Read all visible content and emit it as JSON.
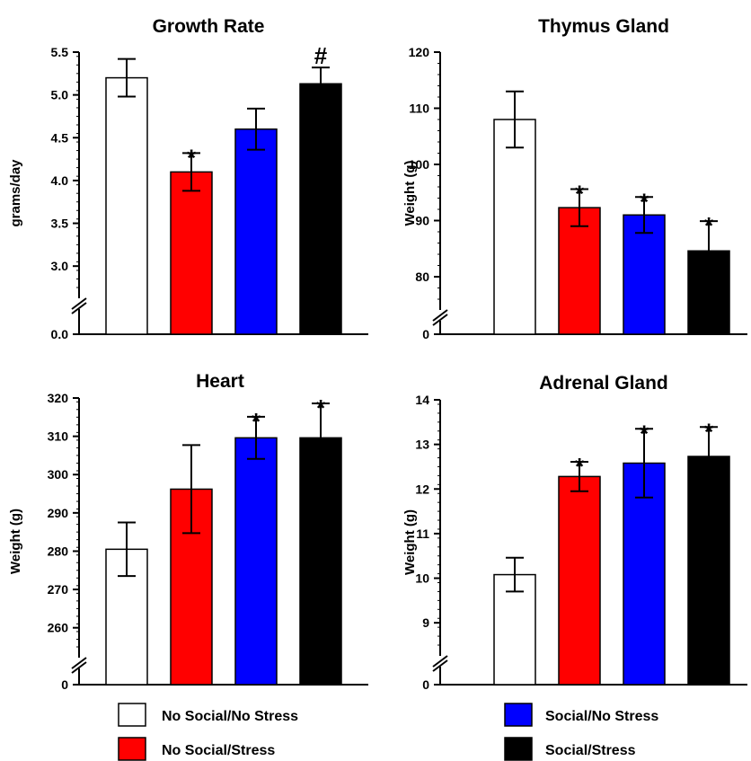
{
  "legend": [
    {
      "label": "No Social/No Stress",
      "color": "#ffffff"
    },
    {
      "label": "No Social/Stress",
      "color": "#ff0000"
    },
    {
      "label": "Social/No Stress",
      "color": "#0000ff"
    },
    {
      "label": "Social/Stress",
      "color": "#000000"
    }
  ],
  "chart_data": [
    {
      "type": "bar",
      "title": "Growth Rate",
      "ylabel": "grams/day",
      "categories": [
        "No Social/No Stress",
        "No Social/Stress",
        "Social/No Stress",
        "Social/Stress"
      ],
      "values": [
        5.2,
        4.1,
        4.6,
        5.13
      ],
      "errors": [
        0.22,
        0.22,
        0.24,
        0.19
      ],
      "colors": [
        "#ffffff",
        "#ff0000",
        "#0000ff",
        "#000000"
      ],
      "markers": [
        "",
        "*",
        "",
        "#"
      ],
      "axis_break": true,
      "ylim": [
        2.75,
        5.5
      ],
      "yticks": [
        0.0,
        3.0,
        3.5,
        4.0,
        4.5,
        5.0,
        5.5
      ],
      "ytick_labels": [
        "0.0",
        "3.0",
        "3.5",
        "4.0",
        "4.5",
        "5.0",
        "5.5"
      ],
      "minor_step": 0.1
    },
    {
      "type": "bar",
      "title": "Thymus Gland",
      "ylabel": "Weight (g)",
      "categories": [
        "No Social/No Stress",
        "No Social/Stress",
        "Social/No Stress",
        "Social/Stress"
      ],
      "values": [
        108,
        92.3,
        91,
        84.6
      ],
      "errors": [
        5,
        3.3,
        3.2,
        5.3
      ],
      "colors": [
        "#ffffff",
        "#ff0000",
        "#0000ff",
        "#000000"
      ],
      "markers": [
        "",
        "*",
        "*",
        "*"
      ],
      "axis_break": true,
      "ylim": [
        76,
        120
      ],
      "yticks": [
        0,
        80,
        90,
        100,
        110,
        120
      ],
      "ytick_labels": [
        "0",
        "80",
        "90",
        "100",
        "110",
        "120"
      ],
      "minor_step": 2
    },
    {
      "type": "bar",
      "title": "Heart",
      "ylabel": "Weight (g)",
      "categories": [
        "No Social/No Stress",
        "No Social/Stress",
        "Social/No Stress",
        "Social/Stress"
      ],
      "values": [
        280.5,
        296.2,
        309.6,
        309.6
      ],
      "errors": [
        7,
        11.5,
        5.5,
        9
      ],
      "colors": [
        "#ffffff",
        "#ff0000",
        "#0000ff",
        "#000000"
      ],
      "markers": [
        "",
        "",
        "*",
        "*"
      ],
      "axis_break": true,
      "ylim": [
        255,
        320
      ],
      "yticks": [
        0,
        260,
        270,
        280,
        290,
        300,
        310,
        320
      ],
      "ytick_labels": [
        "0",
        "260",
        "270",
        "280",
        "290",
        "300",
        "310",
        "320"
      ],
      "minor_step": 2
    },
    {
      "type": "bar",
      "title": "Adrenal Gland",
      "ylabel": "Weight (g)",
      "categories": [
        "No Social/No Stress",
        "No Social/Stress",
        "Social/No Stress",
        "Social/Stress"
      ],
      "values": [
        10.08,
        12.28,
        12.58,
        12.73
      ],
      "errors": [
        0.38,
        0.33,
        0.77,
        0.66
      ],
      "colors": [
        "#ffffff",
        "#ff0000",
        "#0000ff",
        "#000000"
      ],
      "markers": [
        "",
        "*",
        "*",
        "*"
      ],
      "axis_break": true,
      "ylim": [
        8.5,
        14
      ],
      "yticks": [
        0,
        9,
        10,
        11,
        12,
        13,
        14
      ],
      "ytick_labels": [
        "0",
        "9",
        "10",
        "11",
        "12",
        "13",
        "14"
      ],
      "minor_step": 0.2
    }
  ]
}
